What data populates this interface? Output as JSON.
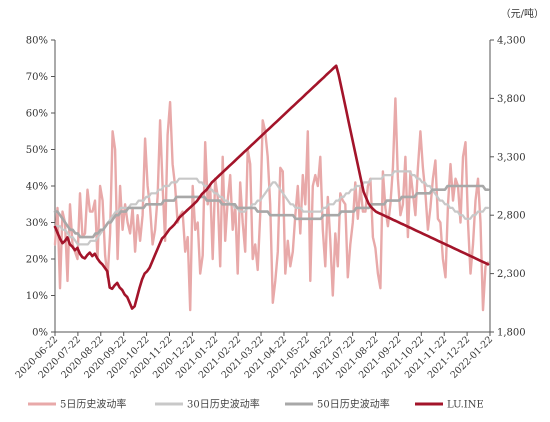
{
  "chart_data": {
    "type": "line",
    "unit_label": "（元/吨）",
    "y_left": {
      "min": 0,
      "max": 80,
      "ticks": [
        "0%",
        "10%",
        "20%",
        "30%",
        "40%",
        "50%",
        "60%",
        "70%",
        "80%"
      ]
    },
    "y_right": {
      "min": 1800,
      "max": 4300,
      "ticks": [
        "1,800",
        "2,300",
        "2,800",
        "3,300",
        "3,800",
        "4,300"
      ]
    },
    "x_ticks": [
      "2020-06-22",
      "2020-07-22",
      "2020-08-22",
      "2020-09-22",
      "2020-10-22",
      "2020-11-22",
      "2020-12-22",
      "2021-01-22",
      "2021-02-22",
      "2021-03-22",
      "2021-04-22",
      "2021-05-22",
      "2021-06-22",
      "2021-07-22",
      "2021-08-22",
      "2021-09-22",
      "2021-10-22",
      "2021-11-22",
      "2021-12-22",
      "2022-01-22"
    ],
    "series": [
      {
        "name": "5日历史波动率",
        "axis": "left",
        "color": "#e8a9a9",
        "values": [
          24,
          34,
          12,
          33,
          30,
          14,
          35,
          24,
          22,
          20,
          38,
          26,
          27,
          39,
          33,
          33,
          36,
          20,
          40,
          36,
          21,
          15,
          27,
          55,
          50,
          20,
          40,
          28,
          35,
          30,
          27,
          34,
          22,
          32,
          25,
          32,
          53,
          40,
          34,
          24,
          28,
          37,
          58,
          40,
          25,
          54,
          63,
          46,
          40,
          30,
          32,
          33,
          22,
          26,
          6,
          40,
          28,
          30,
          16,
          21,
          52,
          35,
          40,
          20,
          42,
          37,
          18,
          48,
          25,
          36,
          43,
          28,
          35,
          16,
          41,
          30,
          22,
          50,
          46,
          20,
          24,
          17,
          32,
          58,
          55,
          48,
          35,
          8,
          14,
          22,
          45,
          44,
          16,
          25,
          18,
          22,
          32,
          40,
          27,
          43,
          35,
          55,
          14,
          40,
          43,
          40,
          48,
          28,
          18,
          37,
          25,
          10,
          27,
          18,
          38,
          36,
          35,
          15,
          24,
          30,
          41,
          31,
          40,
          33,
          33,
          40,
          42,
          26,
          23,
          16,
          12,
          44,
          34,
          29,
          35,
          45,
          64,
          42,
          32,
          35,
          48,
          26,
          44,
          38,
          32,
          45,
          55,
          45,
          38,
          28,
          34,
          42,
          47,
          31,
          30,
          20,
          15,
          35,
          46,
          36,
          42,
          40,
          30,
          48,
          52,
          30,
          16,
          24,
          36,
          42,
          30,
          6,
          18,
          19
        ]
      },
      {
        "name": "30日历史波动率",
        "axis": "left",
        "color": "#c8c8c8",
        "values": [
          29,
          29,
          29,
          28,
          28,
          27,
          26,
          26,
          25,
          24,
          24,
          24,
          24,
          24,
          25,
          25,
          25,
          26,
          27,
          28,
          29,
          30,
          31,
          32,
          33,
          33,
          34,
          34,
          34,
          34,
          35,
          35,
          35,
          36,
          36,
          36,
          37,
          37,
          38,
          38,
          38,
          39,
          39,
          40,
          40,
          40,
          41,
          41,
          41,
          42,
          42,
          42,
          42,
          42,
          42,
          42,
          42,
          41,
          41,
          40,
          40,
          39,
          39,
          38,
          38,
          37,
          37,
          36,
          36,
          35,
          35,
          34,
          34,
          33,
          33,
          33,
          34,
          34,
          35,
          35,
          36,
          36,
          37,
          38,
          39,
          40,
          41,
          41,
          40,
          39,
          38,
          37,
          36,
          35,
          35,
          34,
          34,
          34,
          33,
          33,
          33,
          33,
          33,
          33,
          33,
          33,
          34,
          34,
          35,
          35,
          35,
          36,
          36,
          37,
          37,
          38,
          38,
          39,
          39,
          40,
          40,
          40,
          41,
          41,
          41,
          42,
          42,
          42,
          42,
          42,
          43,
          43,
          43,
          43,
          44,
          44,
          44,
          44,
          44,
          44,
          44,
          43,
          43,
          42,
          42,
          41,
          41,
          40,
          40,
          39,
          38,
          37,
          36,
          36,
          35,
          35,
          34,
          34,
          33,
          33,
          32,
          32,
          31,
          31,
          31,
          32,
          32,
          33,
          33,
          33,
          34,
          34
        ]
      },
      {
        "name": "50日历史波动率",
        "axis": "left",
        "color": "#a8a8a8",
        "values": [
          33,
          33,
          32,
          31,
          30,
          29,
          28,
          28,
          27,
          27,
          26,
          26,
          26,
          26,
          26,
          26,
          27,
          27,
          28,
          28,
          29,
          30,
          30,
          31,
          32,
          32,
          33,
          33,
          33,
          34,
          34,
          34,
          34,
          34,
          34,
          34,
          35,
          35,
          35,
          35,
          35,
          35,
          35,
          36,
          36,
          36,
          36,
          36,
          37,
          37,
          37,
          37,
          37,
          37,
          37,
          37,
          37,
          37,
          37,
          37,
          36,
          36,
          36,
          36,
          36,
          36,
          35,
          35,
          35,
          35,
          35,
          35,
          34,
          34,
          34,
          34,
          34,
          34,
          34,
          34,
          33,
          33,
          33,
          33,
          33,
          32,
          32,
          32,
          32,
          32,
          32,
          32,
          32,
          32,
          32,
          31,
          31,
          31,
          31,
          31,
          31,
          31,
          31,
          31,
          31,
          31,
          32,
          32,
          32,
          32,
          32,
          32,
          32,
          33,
          33,
          33,
          33,
          33,
          33,
          34,
          34,
          34,
          34,
          34,
          34,
          35,
          35,
          35,
          35,
          35,
          35,
          36,
          36,
          36,
          36,
          36,
          36,
          37,
          37,
          37,
          37,
          37,
          37,
          38,
          38,
          38,
          38,
          38,
          38,
          39,
          39,
          39,
          39,
          39,
          39,
          40,
          40,
          40,
          40,
          40,
          40,
          40,
          40,
          40,
          40,
          40,
          40,
          40,
          40,
          40,
          39,
          39
        ]
      },
      {
        "name": "LU.INE",
        "axis": "right",
        "color": "#a3142a",
        "values": [
          2700,
          2650,
          2600,
          2560,
          2580,
          2610,
          2550,
          2530,
          2500,
          2520,
          2470,
          2440,
          2430,
          2460,
          2480,
          2450,
          2470,
          2430,
          2400,
          2380,
          2350,
          2320,
          2180,
          2170,
          2200,
          2220,
          2180,
          2160,
          2120,
          2100,
          2050,
          2000,
          2020,
          2100,
          2180,
          2250,
          2300,
          2320,
          2350,
          2400,
          2450,
          2500,
          2550,
          2600,
          2620,
          2650,
          2680,
          2700,
          2720,
          2750,
          2780,
          2800,
          2820,
          2840,
          2860,
          2880,
          2900,
          2920,
          2950,
          2980,
          3000,
          3020,
          3050,
          3080,
          3100,
          3120,
          3140,
          3160,
          3180,
          3200,
          3220,
          3240,
          3260,
          3280,
          3300,
          3320,
          3340,
          3360,
          3380,
          3400,
          3420,
          3440,
          3460,
          3480,
          3500,
          3520,
          3540,
          3560,
          3580,
          3600,
          3620,
          3640,
          3660,
          3680,
          3700,
          3720,
          3740,
          3760,
          3780,
          3800,
          3820,
          3840,
          3860,
          3880,
          3900,
          3920,
          3940,
          3960,
          3980,
          4000,
          4020,
          4040,
          4060,
          4080,
          4000,
          3900,
          3800,
          3700,
          3600,
          3500,
          3400,
          3300,
          3200,
          3100,
          3000,
          2950,
          2900,
          2870,
          2850,
          2830,
          2820,
          2810,
          2800,
          2790,
          2780,
          2770,
          2760,
          2750,
          2740,
          2730,
          2720,
          2710,
          2700,
          2690,
          2680,
          2670,
          2660,
          2650,
          2640,
          2630,
          2620,
          2610,
          2600,
          2590,
          2580,
          2570,
          2560,
          2550,
          2540,
          2530,
          2520,
          2510,
          2500,
          2490,
          2480,
          2470,
          2460,
          2450,
          2440,
          2430,
          2420,
          2410,
          2400,
          2390,
          2380
        ]
      }
    ]
  }
}
